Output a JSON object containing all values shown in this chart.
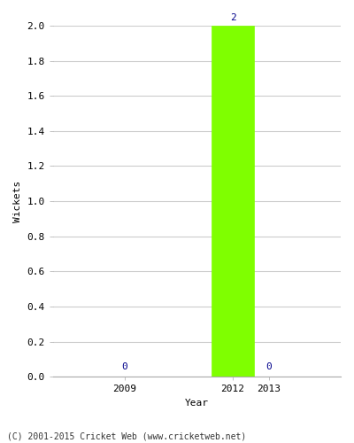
{
  "years": [
    2009,
    2012,
    2013
  ],
  "values": [
    0,
    2,
    0
  ],
  "bar_color": "#7fff00",
  "bar_edge_color": "#7fff00",
  "ylabel": "Wickets",
  "xlabel": "Year",
  "ylim": [
    0.0,
    2.0
  ],
  "yticks": [
    0.0,
    0.2,
    0.4,
    0.6,
    0.8,
    1.0,
    1.2,
    1.4,
    1.6,
    1.8,
    2.0
  ],
  "xticks": [
    2009,
    2012,
    2013
  ],
  "xlim": [
    2007.0,
    2015.0
  ],
  "bar_width": 1.2,
  "grid_color": "#cccccc",
  "background_color": "#ffffff",
  "footer_text": "(C) 2001-2015 Cricket Web (www.cricketweb.net)",
  "annotation_color": "#00008b",
  "tick_label_fontsize": 8,
  "axis_label_fontsize": 8
}
